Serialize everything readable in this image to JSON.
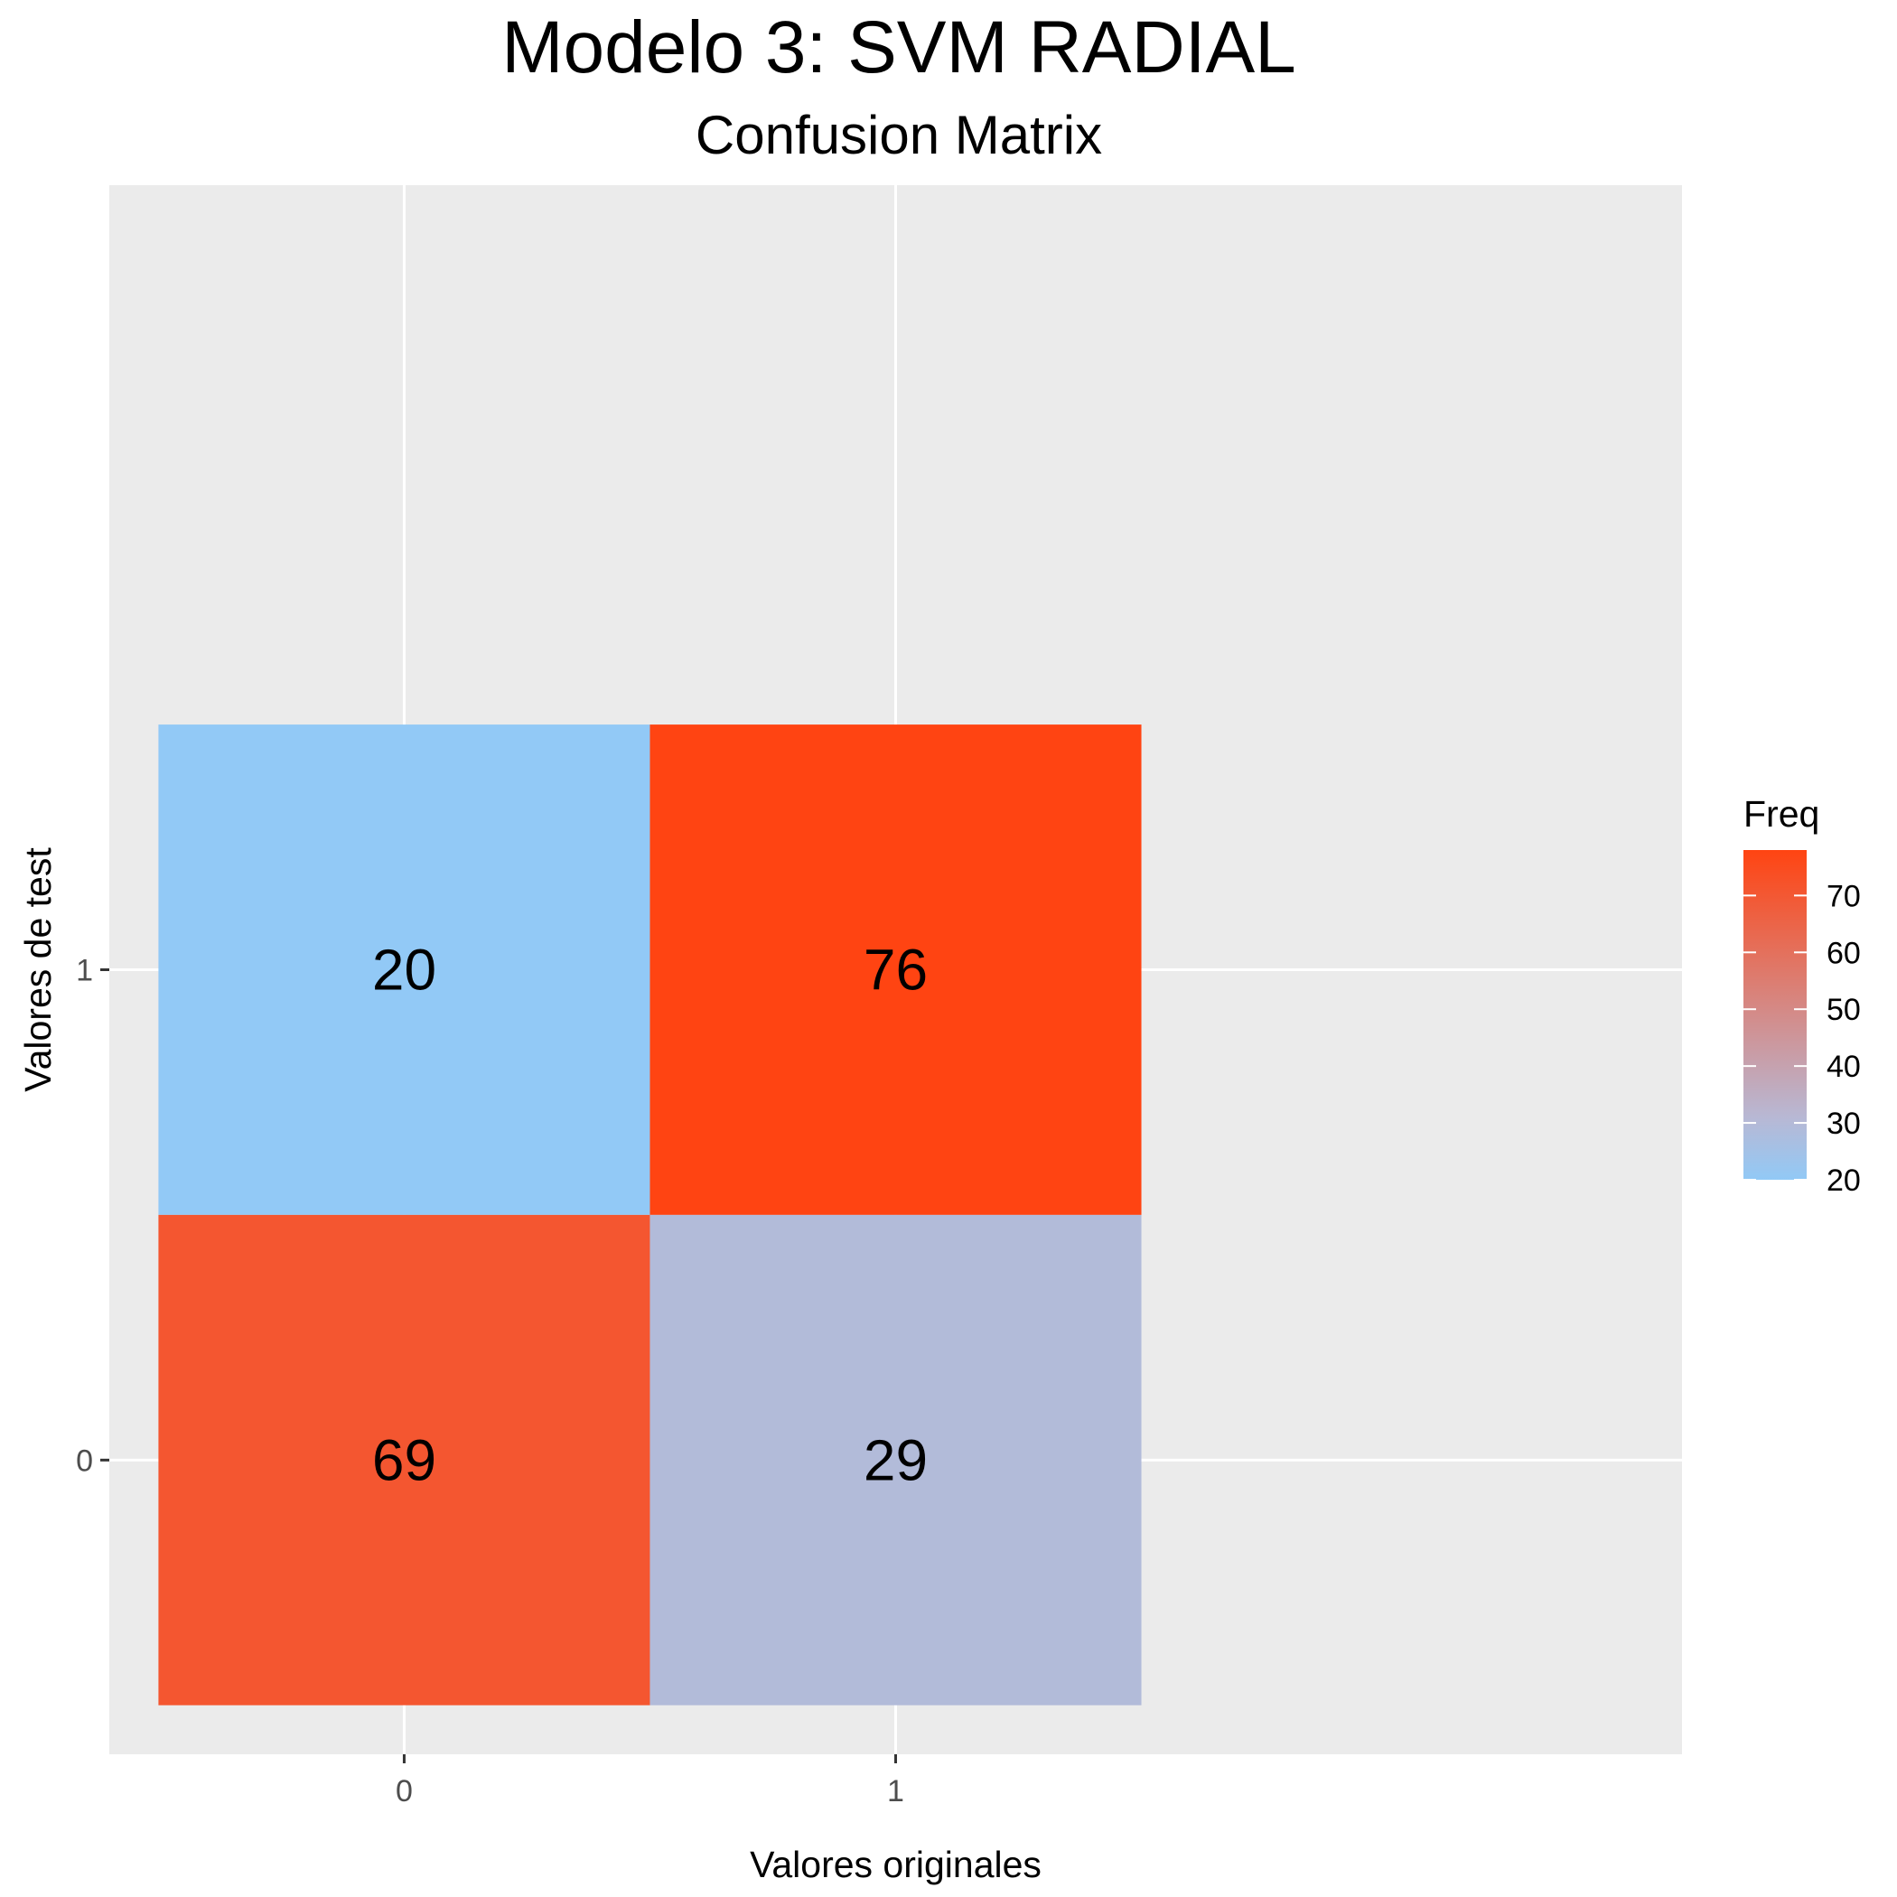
{
  "title": "Modelo 3: SVM RADIAL",
  "subtitle": "Confusion Matrix",
  "chart_data": {
    "type": "heatmap",
    "xlabel": "Valores originales",
    "ylabel": "Valores de test",
    "x_categories": [
      "0",
      "1"
    ],
    "y_categories": [
      "0",
      "1"
    ],
    "cells": [
      {
        "x": "0",
        "y": "1",
        "value": 20
      },
      {
        "x": "1",
        "y": "1",
        "value": 76
      },
      {
        "x": "0",
        "y": "0",
        "value": 69
      },
      {
        "x": "1",
        "y": "0",
        "value": 29
      }
    ],
    "legend": {
      "title": "Freq",
      "placement": "right",
      "ticks": [
        20,
        30,
        40,
        50,
        60,
        70
      ],
      "range": [
        20,
        76
      ],
      "low_color": "#92c9f6",
      "mid_color": "#b8b8d4",
      "high_color": "#ff4412"
    },
    "grid": true,
    "panel_background": "#ebebeb"
  }
}
